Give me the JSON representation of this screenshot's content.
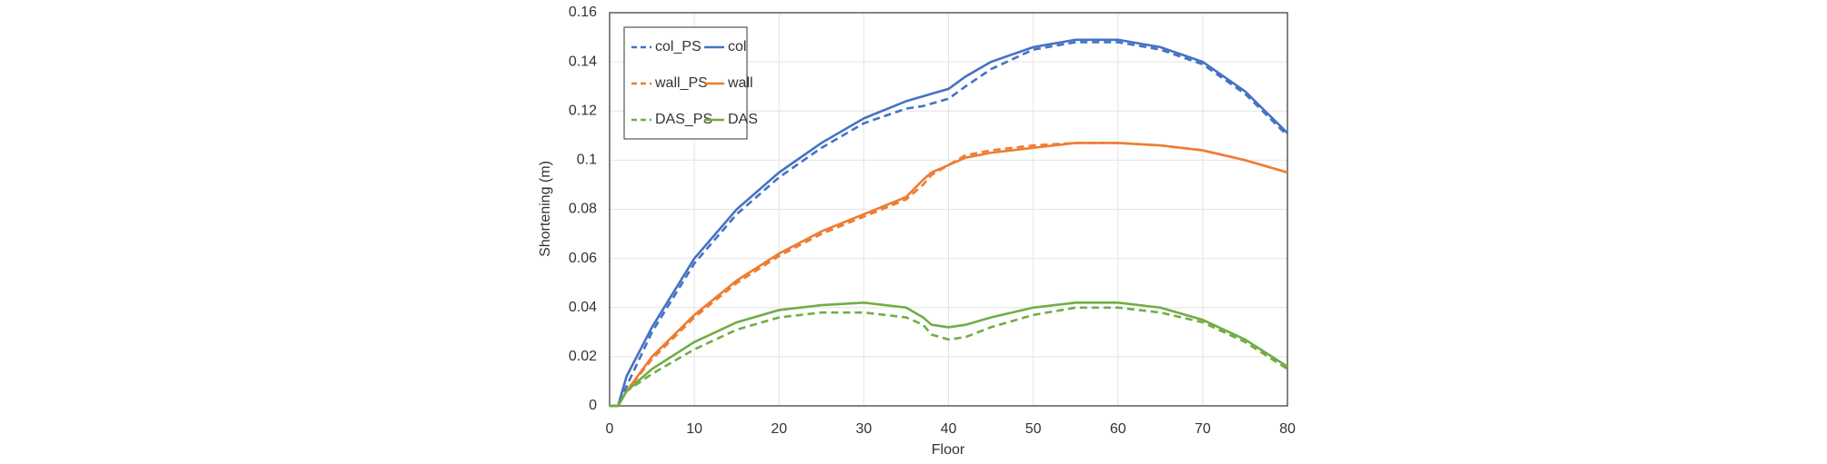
{
  "chart_data": {
    "type": "line",
    "x_label": "Floor",
    "y_label": "Shortening (m)",
    "x": [
      0,
      1,
      2,
      5,
      10,
      15,
      20,
      25,
      30,
      35,
      37,
      38,
      40,
      42,
      45,
      50,
      55,
      60,
      65,
      70,
      75,
      80
    ],
    "series": [
      {
        "name": "col_PS",
        "color": "#4472c4",
        "dashed": true,
        "values": [
          0,
          0,
          0.008,
          0.03,
          0.058,
          0.078,
          0.093,
          0.105,
          0.115,
          0.121,
          0.122,
          0.123,
          0.125,
          0.13,
          0.137,
          0.145,
          0.148,
          0.148,
          0.145,
          0.139,
          0.127,
          0.11
        ]
      },
      {
        "name": "col",
        "color": "#4472c4",
        "dashed": false,
        "values": [
          0,
          0,
          0.012,
          0.032,
          0.06,
          0.08,
          0.095,
          0.107,
          0.117,
          0.124,
          0.126,
          0.127,
          0.129,
          0.134,
          0.14,
          0.146,
          0.149,
          0.149,
          0.146,
          0.14,
          0.128,
          0.111
        ]
      },
      {
        "name": "wall_PS",
        "color": "#ed7d31",
        "dashed": true,
        "values": [
          0,
          0,
          0.006,
          0.019,
          0.036,
          0.05,
          0.061,
          0.07,
          0.077,
          0.084,
          0.09,
          0.094,
          0.098,
          0.102,
          0.104,
          0.106,
          0.107,
          0.107,
          0.106,
          0.104,
          0.1,
          0.095
        ]
      },
      {
        "name": "wall",
        "color": "#ed7d31",
        "dashed": false,
        "values": [
          0,
          0,
          0.006,
          0.02,
          0.037,
          0.051,
          0.062,
          0.071,
          0.078,
          0.085,
          0.092,
          0.095,
          0.098,
          0.101,
          0.103,
          0.105,
          0.107,
          0.107,
          0.106,
          0.104,
          0.1,
          0.095
        ]
      },
      {
        "name": "DAS_PS",
        "color": "#70ad47",
        "dashed": true,
        "values": [
          0,
          0,
          0.006,
          0.013,
          0.023,
          0.031,
          0.036,
          0.038,
          0.038,
          0.036,
          0.033,
          0.029,
          0.027,
          0.028,
          0.032,
          0.037,
          0.04,
          0.04,
          0.038,
          0.034,
          0.026,
          0.015
        ]
      },
      {
        "name": "DAS",
        "color": "#70ad47",
        "dashed": false,
        "values": [
          0,
          0,
          0.006,
          0.015,
          0.026,
          0.034,
          0.039,
          0.041,
          0.042,
          0.04,
          0.036,
          0.033,
          0.032,
          0.033,
          0.036,
          0.04,
          0.042,
          0.042,
          0.04,
          0.035,
          0.027,
          0.016
        ]
      }
    ],
    "xlim": [
      0,
      80
    ],
    "xticks": [
      0,
      10,
      20,
      30,
      40,
      50,
      60,
      70,
      80
    ],
    "ylim": [
      0,
      0.16
    ],
    "yticks": [
      0,
      0.02,
      0.04,
      0.06,
      0.08,
      0.1,
      0.12,
      0.14,
      0.16
    ],
    "grid": true,
    "legend": "upper-left"
  }
}
